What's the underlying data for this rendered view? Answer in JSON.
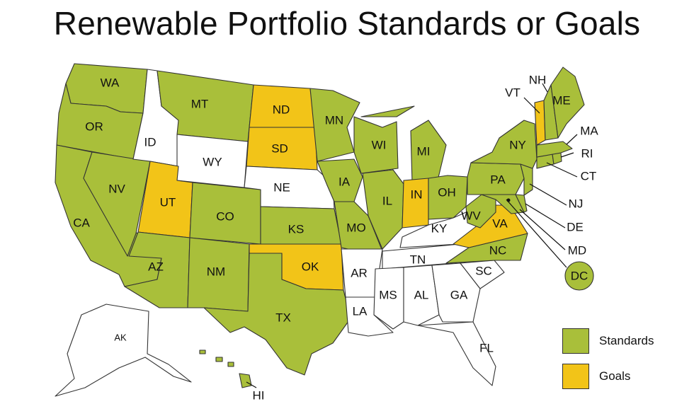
{
  "title": "Renewable Portfolio Standards or Goals",
  "colors": {
    "standards": "#a9bf3a",
    "goals": "#f2c418",
    "none": "#ffffff"
  },
  "legend": [
    {
      "key": "standards",
      "label": "Standards"
    },
    {
      "key": "goals",
      "label": "Goals"
    }
  ],
  "states": {
    "WA": "standards",
    "OR": "standards",
    "CA": "standards",
    "NV": "standards",
    "ID": "none",
    "MT": "standards",
    "WY": "none",
    "UT": "goals",
    "AZ": "standards",
    "CO": "standards",
    "NM": "standards",
    "ND": "goals",
    "SD": "goals",
    "NE": "none",
    "KS": "standards",
    "OK": "goals",
    "TX": "standards",
    "MN": "standards",
    "IA": "standards",
    "MO": "standards",
    "AR": "none",
    "LA": "none",
    "WI": "standards",
    "IL": "standards",
    "MI": "standards",
    "IN": "goals",
    "OH": "standards",
    "KY": "none",
    "TN": "none",
    "MS": "none",
    "AL": "none",
    "GA": "none",
    "FL": "none",
    "SC": "none",
    "NC": "standards",
    "VA": "goals",
    "WV": "standards",
    "PA": "standards",
    "NY": "standards",
    "VT": "goals",
    "NH": "standards",
    "ME": "standards",
    "MA": "standards",
    "RI": "standards",
    "CT": "standards",
    "NJ": "standards",
    "DE": "standards",
    "MD": "standards",
    "DC": "standards",
    "AK": "none",
    "HI": "standards"
  }
}
